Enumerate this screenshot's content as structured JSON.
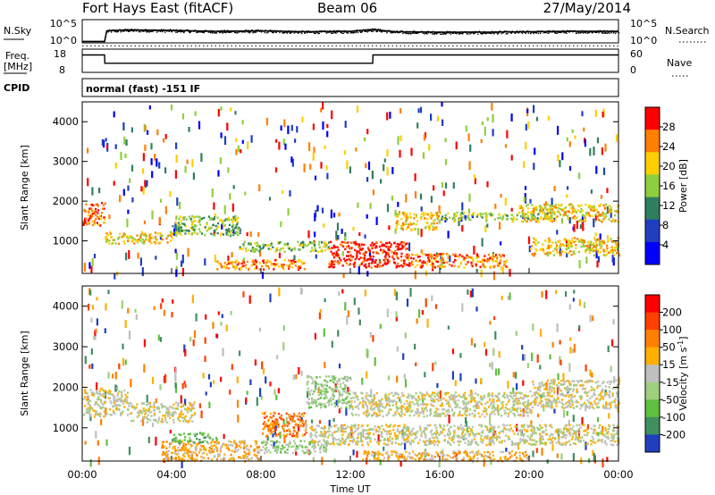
{
  "header": {
    "station": "Fort Hays East (fitACF)",
    "beam": "Beam 06",
    "date": "27/May/2014"
  },
  "noise_panel": {
    "left_label": "N.Sky",
    "right_label": "N.Search",
    "left_ticks": [
      "10^5",
      "10^0"
    ],
    "right_ticks": [
      "10^5",
      "10^0"
    ]
  },
  "freq_panel": {
    "left_label_1": "Freq.",
    "left_label_2": "[MHz]",
    "right_label": "Nave",
    "left_ticks": [
      "18",
      "8"
    ],
    "right_ticks": [
      "60",
      "0"
    ]
  },
  "cpid": {
    "label": "CPID",
    "value": "normal (fast) -151 IF"
  },
  "axes": {
    "ylabel": "Slant Range [km]",
    "yticks": [
      "4000",
      "3000",
      "2000",
      "1000"
    ],
    "xticks": [
      "00:00",
      "04:00",
      "08:00",
      "12:00",
      "16:00",
      "20:00",
      "00:00"
    ],
    "xlabel": "Time UT"
  },
  "chart_data": [
    {
      "type": "line",
      "title": "N.Sky / N.Search",
      "x": [
        0,
        1,
        1.1,
        2,
        4,
        6,
        8,
        10,
        12,
        13,
        14,
        16,
        18,
        20,
        22,
        24
      ],
      "series": [
        {
          "name": "N.Sky",
          "values": [
            0.3,
            0.3,
            2.6,
            2.8,
            2.7,
            2.5,
            2.6,
            2.4,
            2.5,
            2.9,
            2.4,
            2.3,
            2.3,
            2.4,
            2.5,
            2.5
          ]
        }
      ],
      "ylim": [
        0,
        5
      ],
      "ylabel": "N.Sky"
    },
    {
      "type": "line",
      "title": "Freq. [MHz] / Nave",
      "x": [
        0,
        1,
        1.01,
        13,
        13.01,
        24
      ],
      "series": [
        {
          "name": "Freq.",
          "values": [
            15.5,
            15.5,
            10.5,
            10.5,
            15.5,
            15.5
          ]
        },
        {
          "name": "Nave",
          "values": [
            21,
            21,
            21,
            21,
            21,
            21
          ]
        }
      ],
      "ylim": [
        5,
        19
      ],
      "ylabel": "Freq. [MHz]"
    },
    {
      "type": "heatmap",
      "title": "Power",
      "colorbar_label": "Power [dB]",
      "colorbar_ticks": [
        "28",
        "24",
        "20",
        "16",
        "12",
        "8",
        "4"
      ],
      "colors": [
        "#0000ff",
        "#1f3fbf",
        "#2f7f5f",
        "#8fcf3f",
        "#ffcf00",
        "#ff7f00",
        "#ff0000"
      ],
      "xlabel": "Time UT",
      "ylabel": "Slant Range [km]",
      "xlim": [
        0,
        24
      ],
      "ylim": [
        180,
        4500
      ],
      "bands": [
        {
          "t0": 0.0,
          "t1": 1.0,
          "r0": 1400,
          "r1": 2000,
          "level": 5
        },
        {
          "t0": 1.0,
          "t1": 4.0,
          "r0": 950,
          "r1": 1250,
          "level": 4
        },
        {
          "t0": 4.0,
          "t1": 7.0,
          "r0": 1150,
          "r1": 1650,
          "level": 3
        },
        {
          "t0": 6.0,
          "t1": 10.0,
          "r0": 300,
          "r1": 550,
          "level": 5
        },
        {
          "t0": 7.0,
          "t1": 11.0,
          "r0": 750,
          "r1": 1000,
          "level": 3
        },
        {
          "t0": 11.0,
          "t1": 14.5,
          "r0": 350,
          "r1": 1000,
          "level": 6
        },
        {
          "t0": 14.0,
          "t1": 16.0,
          "r0": 1300,
          "r1": 1750,
          "level": 4
        },
        {
          "t0": 14.5,
          "t1": 19.0,
          "r0": 350,
          "r1": 700,
          "level": 5
        },
        {
          "t0": 16.0,
          "t1": 21.0,
          "r0": 1550,
          "r1": 1750,
          "level": 3
        },
        {
          "t0": 19.5,
          "t1": 24.0,
          "r0": 1500,
          "r1": 1950,
          "level": 4
        },
        {
          "t0": 20.0,
          "t1": 24.0,
          "r0": 650,
          "r1": 1100,
          "level": 4
        }
      ]
    },
    {
      "type": "heatmap",
      "title": "Velocity",
      "colorbar_label": "Velocity [m s^-1]",
      "colorbar_ticks": [
        "200",
        "100",
        "50",
        "15",
        "-15",
        "-50",
        "-100",
        "-200"
      ],
      "colors": [
        "#1f3fbf",
        "#3f8f5f",
        "#5fbf3f",
        "#9fcf7f",
        "#bfbfbf",
        "#ffb000",
        "#ff8000",
        "#ff4000",
        "#ff0000"
      ],
      "xlabel": "Time UT",
      "ylabel": "Slant Range [km]",
      "xlim": [
        0,
        24
      ],
      "ylim": [
        180,
        4500
      ],
      "bands": [
        {
          "t0": 0.0,
          "t1": 2.0,
          "r0": 1300,
          "r1": 2000,
          "level": 4
        },
        {
          "t0": 2.0,
          "t1": 5.0,
          "r0": 1150,
          "r1": 1650,
          "level": 4
        },
        {
          "t0": 3.5,
          "t1": 8.0,
          "r0": 200,
          "r1": 700,
          "level": 5
        },
        {
          "t0": 4.0,
          "t1": 6.0,
          "r0": 650,
          "r1": 900,
          "level": 2
        },
        {
          "t0": 8.0,
          "t1": 10.0,
          "r0": 800,
          "r1": 1400,
          "level": 6
        },
        {
          "t0": 8.0,
          "t1": 11.0,
          "r0": 400,
          "r1": 700,
          "level": 3
        },
        {
          "t0": 10.0,
          "t1": 12.0,
          "r0": 1500,
          "r1": 2300,
          "level": 3
        },
        {
          "t0": 10.0,
          "t1": 20.0,
          "r0": 600,
          "r1": 1100,
          "level": 4
        },
        {
          "t0": 12.0,
          "t1": 20.0,
          "r0": 1300,
          "r1": 1900,
          "level": 4
        },
        {
          "t0": 12.5,
          "t1": 20.0,
          "r0": 200,
          "r1": 450,
          "level": 5
        },
        {
          "t0": 20.0,
          "t1": 24.0,
          "r0": 1500,
          "r1": 2200,
          "level": 4
        },
        {
          "t0": 20.0,
          "t1": 24.0,
          "r0": 600,
          "r1": 1100,
          "level": 4
        }
      ]
    }
  ]
}
